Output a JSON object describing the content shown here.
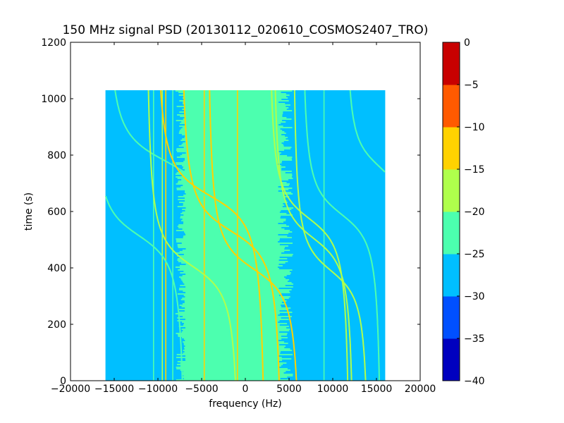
{
  "chart_data": {
    "type": "heatmap",
    "title": "150 MHz signal PSD (20130112_020610_COSMOS2407_TRO)",
    "xlabel": "frequency (Hz)",
    "ylabel": "time (s)",
    "xlim": [
      -20000,
      20000
    ],
    "ylim": [
      0,
      1200
    ],
    "x_ticks": [
      -20000,
      -15000,
      -10000,
      -5000,
      0,
      5000,
      10000,
      15000,
      20000
    ],
    "x_tick_labels": [
      "−20000",
      "−15000",
      "−10000",
      "−5000",
      "0",
      "5000",
      "10000",
      "15000",
      "20000"
    ],
    "y_ticks": [
      0,
      200,
      400,
      600,
      800,
      1000,
      1200
    ],
    "y_tick_labels": [
      "0",
      "200",
      "400",
      "600",
      "800",
      "1000",
      "1200"
    ],
    "image_extent": {
      "freq": [
        -16000,
        16000
      ],
      "time": [
        0,
        1030
      ]
    },
    "background_level": -27.5,
    "noise_band": {
      "freq": [
        -8000,
        5500
      ],
      "level": -22.5
    },
    "colorbar": {
      "levels": [
        -40,
        -35,
        -30,
        -25,
        -20,
        -15,
        -10,
        -5,
        0
      ],
      "tick_labels": [
        "−40",
        "−35",
        "−30",
        "−25",
        "−20",
        "−15",
        "−10",
        "−5",
        "0"
      ],
      "colors": [
        "#0000bf",
        "#0050ff",
        "#00bfff",
        "#4cffaf",
        "#afff4c",
        "#ffd200",
        "#ff5a00",
        "#c80000"
      ]
    },
    "vertical_lines": [
      {
        "freq": -10500,
        "level": -22
      },
      {
        "freq": -9500,
        "level": -17
      },
      {
        "freq": -9100,
        "level": -12
      },
      {
        "freq": -8300,
        "level": -20
      },
      {
        "freq": -4700,
        "level": -13
      },
      {
        "freq": -900,
        "level": -13
      },
      {
        "freq": 9000,
        "level": -22
      }
    ],
    "doppler_traces": [
      {
        "tca": 780,
        "f0": -9200,
        "span": 7000,
        "level": -20
      },
      {
        "tca": 655,
        "f0": -4000,
        "span": 6500,
        "level": -12
      },
      {
        "tca": 515,
        "f0": -12200,
        "span": 5500,
        "level": -20
      },
      {
        "tca": 530,
        "f0": -1600,
        "span": 6000,
        "level": -12
      },
      {
        "tca": 405,
        "f0": -6000,
        "span": 5500,
        "level": -17
      },
      {
        "tca": 395,
        "f0": 1000,
        "span": 5500,
        "level": -12
      },
      {
        "tca": 575,
        "f0": 7300,
        "span": 4800,
        "level": -15
      },
      {
        "tca": 505,
        "f0": 7800,
        "span": 4800,
        "level": -17
      },
      {
        "tca": 390,
        "f0": 9800,
        "span": 4500,
        "level": -17
      },
      {
        "tca": 590,
        "f0": 11000,
        "span": 4700,
        "level": -20
      },
      {
        "tca": 760,
        "f0": 15300,
        "span": 4000,
        "level": -20
      }
    ]
  }
}
